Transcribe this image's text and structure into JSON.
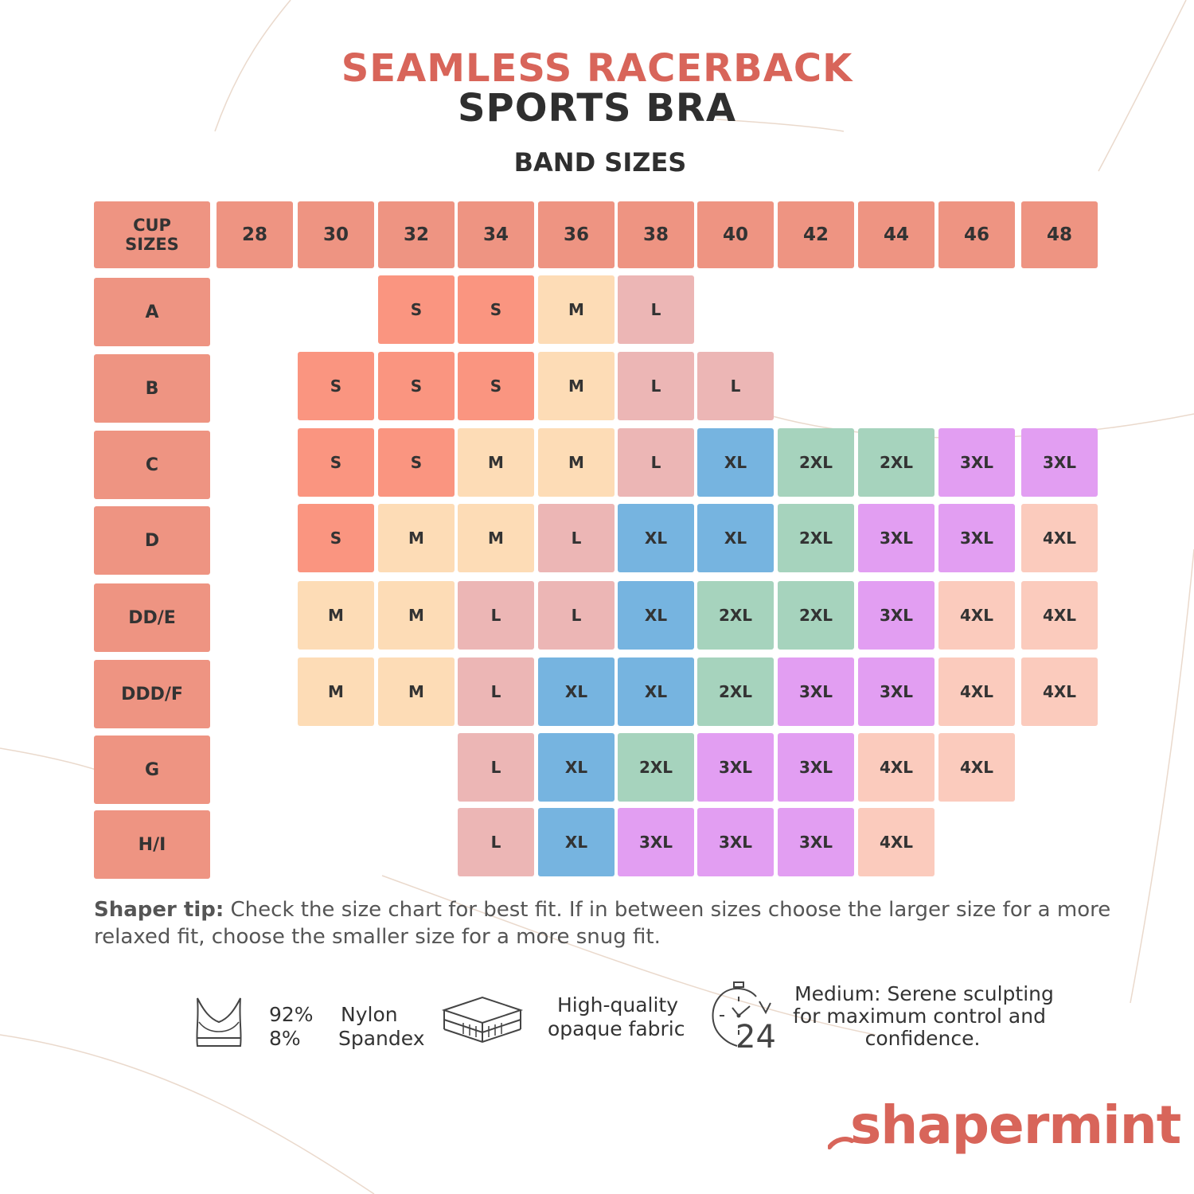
{
  "title": {
    "line1": "SEAMLESS RACERBACK",
    "line2": "SPORTS BRA"
  },
  "band_caption": "BAND SIZES",
  "colors": {
    "header": "#ee9482",
    "S": "#fa9580",
    "M": "#fddcb6",
    "L": "#ecb6b5",
    "XL": "#76b4e0",
    "2XL": "#a6d3bd",
    "3XL": "#e29ef2",
    "4XL": "#fbcbbd",
    "title_accent": "#d8655a"
  },
  "chart_data": {
    "type": "table",
    "title": "SEAMLESS RACERBACK SPORTS BRA",
    "column_axis_label": "BAND SIZES",
    "corner_label": "CUP SIZES",
    "bands": [
      "28",
      "30",
      "32",
      "34",
      "36",
      "38",
      "40",
      "42",
      "44",
      "46",
      "48"
    ],
    "cups": [
      "A",
      "B",
      "C",
      "D",
      "DD/E",
      "DDD/F",
      "G",
      "H/I"
    ],
    "sizes": [
      [
        "",
        "",
        "S",
        "S",
        "M",
        "L",
        "",
        "",
        "",
        "",
        ""
      ],
      [
        "",
        "S",
        "S",
        "S",
        "M",
        "L",
        "L",
        "",
        "",
        "",
        ""
      ],
      [
        "",
        "S",
        "S",
        "M",
        "M",
        "L",
        "XL",
        "2XL",
        "2XL",
        "3XL",
        "3XL"
      ],
      [
        "",
        "S",
        "M",
        "M",
        "L",
        "XL",
        "XL",
        "2XL",
        "3XL",
        "3XL",
        "4XL"
      ],
      [
        "",
        "M",
        "M",
        "L",
        "L",
        "XL",
        "2XL",
        "2XL",
        "3XL",
        "4XL",
        "4XL"
      ],
      [
        "",
        "M",
        "M",
        "L",
        "XL",
        "XL",
        "2XL",
        "3XL",
        "3XL",
        "4XL",
        "4XL"
      ],
      [
        "",
        "",
        "",
        "L",
        "XL",
        "2XL",
        "3XL",
        "3XL",
        "4XL",
        "4XL",
        ""
      ],
      [
        "",
        "",
        "",
        "L",
        "XL",
        "3XL",
        "3XL",
        "3XL",
        "4XL",
        "",
        ""
      ]
    ]
  },
  "tip": {
    "label": "Shaper tip:",
    "text": " Check the size chart for best fit. If in between sizes choose the larger size for a more relaxed fit, choose the smaller size for a more snug fit."
  },
  "features": {
    "composition_percents": [
      "92%",
      "8%"
    ],
    "composition_materials": [
      "Nylon",
      "Spandex"
    ],
    "fabric": [
      "High-quality",
      "opaque fabric"
    ],
    "timer_number": "24",
    "support": [
      "Medium: Serene sculpting",
      "for maximum control and",
      "confidence."
    ],
    "icons": [
      "bra-icon",
      "fabric-layers-icon",
      "24-hour-clock-icon"
    ]
  },
  "brand": "shapermint"
}
